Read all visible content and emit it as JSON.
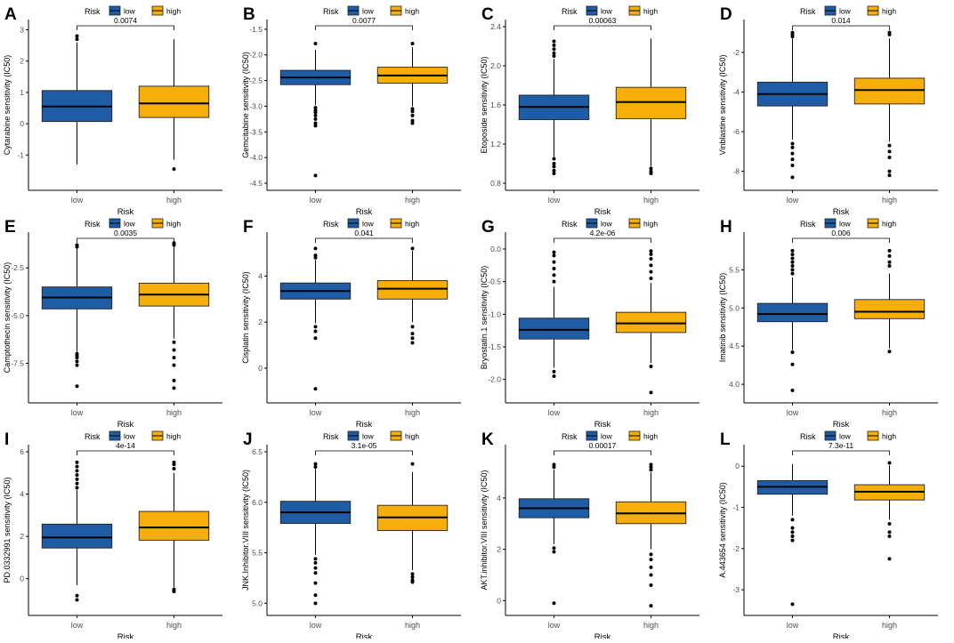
{
  "colors": {
    "low": "#1f5ca6",
    "high": "#f6ae0b",
    "text": "#000000",
    "axis": "#000000",
    "tick_text": "#4d4d4d"
  },
  "legend": {
    "title": "Risk",
    "items": [
      {
        "label": "low",
        "group": "low"
      },
      {
        "label": "high",
        "group": "high"
      }
    ]
  },
  "chart_data": [
    {
      "panel": "A",
      "type": "box",
      "title": "",
      "xlabel": "Risk",
      "ylabel": "Cytarabine sensitivity (IC50)",
      "categories": [
        "low",
        "high"
      ],
      "ylim": [
        -1.9,
        3.1
      ],
      "yticks": [
        -1,
        0,
        1,
        2,
        3
      ],
      "ytick_labels": [
        "-1",
        "0",
        "1",
        "2",
        "3"
      ],
      "pvalue": "0.0074",
      "boxes": [
        {
          "group": "low",
          "q1": 0.07,
          "median": 0.55,
          "q3": 1.06,
          "whisker_low": -1.3,
          "whisker_high": 2.6,
          "outliers": [
            2.7,
            2.8
          ]
        },
        {
          "group": "high",
          "q1": 0.2,
          "median": 0.65,
          "q3": 1.2,
          "whisker_low": -1.15,
          "whisker_high": 2.7,
          "outliers": [
            -1.45
          ]
        }
      ]
    },
    {
      "panel": "B",
      "type": "box",
      "title": "",
      "xlabel": "Risk",
      "ylabel": "Gemcitabine sensitivity (IC50)",
      "categories": [
        "low",
        "high"
      ],
      "ylim": [
        -4.5,
        -1.45
      ],
      "yticks": [
        -4.5,
        -4.0,
        -3.5,
        -3.0,
        -2.5,
        -2.0,
        -1.5
      ],
      "ytick_labels": [
        "-4.5",
        "-4.0",
        "-3.5",
        "-3.0",
        "-2.5",
        "-2.0",
        "-1.5"
      ],
      "pvalue": "0.0077",
      "boxes": [
        {
          "group": "low",
          "q1": -2.58,
          "median": -2.44,
          "q3": -2.3,
          "whisker_low": -2.98,
          "whisker_high": -1.9,
          "outliers": [
            -3.03,
            -3.08,
            -3.12,
            -3.18,
            -3.25,
            -3.33,
            -3.38,
            -1.78,
            -4.35
          ]
        },
        {
          "group": "high",
          "q1": -2.55,
          "median": -2.4,
          "q3": -2.24,
          "whisker_low": -3.0,
          "whisker_high": -1.85,
          "outliers": [
            -3.05,
            -3.1,
            -3.18,
            -3.28,
            -3.33,
            -1.78
          ]
        }
      ]
    },
    {
      "panel": "C",
      "type": "box",
      "title": "",
      "xlabel": "Risk",
      "ylabel": "Etoposide sensitivity (IC50)",
      "categories": [
        "low",
        "high"
      ],
      "ylim": [
        0.8,
        2.4
      ],
      "yticks": [
        0.8,
        1.2,
        1.6,
        2.0,
        2.4
      ],
      "ytick_labels": [
        "0.8",
        "1.2",
        "1.6",
        "2.0",
        "2.4"
      ],
      "pvalue": "0.00063",
      "boxes": [
        {
          "group": "low",
          "q1": 1.45,
          "median": 1.58,
          "q3": 1.7,
          "whisker_low": 1.07,
          "whisker_high": 2.07,
          "outliers": [
            1.05,
            1.0,
            0.97,
            0.93,
            0.9,
            2.1,
            2.13,
            2.17,
            2.21,
            2.25
          ]
        },
        {
          "group": "high",
          "q1": 1.46,
          "median": 1.63,
          "q3": 1.78,
          "whisker_low": 0.97,
          "whisker_high": 2.28,
          "outliers": [
            0.95,
            0.92,
            0.9
          ]
        }
      ]
    },
    {
      "panel": "D",
      "type": "box",
      "title": "",
      "xlabel": "Risk",
      "ylabel": "Vinblastine sensitivity (IC50)",
      "categories": [
        "low",
        "high"
      ],
      "ylim": [
        -8.6,
        -0.7
      ],
      "yticks": [
        -8,
        -6,
        -4,
        -2
      ],
      "ytick_labels": [
        "-8",
        "-6",
        "-4",
        "-2"
      ],
      "pvalue": "0.014",
      "boxes": [
        {
          "group": "low",
          "q1": -4.7,
          "median": -4.1,
          "q3": -3.5,
          "whisker_low": -6.4,
          "whisker_high": -1.3,
          "outliers": [
            -6.6,
            -6.8,
            -7.1,
            -7.4,
            -7.7,
            -8.3,
            -1.2,
            -1.1,
            -1.0
          ]
        },
        {
          "group": "high",
          "q1": -4.6,
          "median": -3.9,
          "q3": -3.3,
          "whisker_low": -6.5,
          "whisker_high": -1.3,
          "outliers": [
            -6.7,
            -7.0,
            -7.3,
            -8.0,
            -8.2,
            -1.1,
            -1.0
          ]
        }
      ]
    },
    {
      "panel": "E",
      "type": "box",
      "title": "",
      "xlabel": "Risk",
      "ylabel": "Camptothecin sensitivity (IC50)",
      "categories": [
        "low",
        "high"
      ],
      "ylim": [
        -9.2,
        -1.0
      ],
      "yticks": [
        -7.5,
        -5.0,
        -2.5
      ],
      "ytick_labels": [
        "-7.5",
        "-5.0",
        "-2.5"
      ],
      "pvalue": "0.0035",
      "boxes": [
        {
          "group": "low",
          "q1": -4.65,
          "median": -4.05,
          "q3": -3.5,
          "whisker_low": -6.9,
          "whisker_high": -1.5,
          "outliers": [
            -7.0,
            -7.1,
            -7.2,
            -7.4,
            -7.6,
            -8.7,
            -1.4,
            -1.3
          ]
        },
        {
          "group": "high",
          "q1": -4.5,
          "median": -3.9,
          "q3": -3.3,
          "whisker_low": -6.2,
          "whisker_high": -1.4,
          "outliers": [
            -6.4,
            -6.8,
            -7.2,
            -7.6,
            -8.4,
            -8.8,
            -1.3,
            -1.2
          ]
        }
      ]
    },
    {
      "panel": "F",
      "type": "box",
      "title": "",
      "xlabel": "Risk",
      "ylabel": "Cisplatin sensitivity (IC50)",
      "categories": [
        "low",
        "high"
      ],
      "ylim": [
        -1.2,
        5.6
      ],
      "yticks": [
        0,
        2,
        4
      ],
      "ytick_labels": [
        "0",
        "2",
        "4"
      ],
      "pvalue": "0.041",
      "boxes": [
        {
          "group": "low",
          "q1": 3.0,
          "median": 3.35,
          "q3": 3.7,
          "whisker_low": 1.95,
          "whisker_high": 4.7,
          "outliers": [
            1.8,
            1.6,
            1.3,
            -0.9,
            4.8,
            4.9,
            5.2
          ]
        },
        {
          "group": "high",
          "q1": 3.0,
          "median": 3.45,
          "q3": 3.8,
          "whisker_low": 2.0,
          "whisker_high": 5.1,
          "outliers": [
            1.8,
            1.5,
            1.3,
            1.1,
            5.2
          ]
        }
      ]
    },
    {
      "panel": "G",
      "type": "box",
      "title": "",
      "xlabel": "Risk",
      "ylabel": "Bryostatin.1 sensitivity (IC50)",
      "categories": [
        "low",
        "high"
      ],
      "ylim": [
        -2.25,
        0.15
      ],
      "yticks": [
        -2.0,
        -1.5,
        -1.0,
        -0.5,
        0.0
      ],
      "ytick_labels": [
        "-2.0",
        "-1.5",
        "-1.0",
        "-0.5",
        "0.0"
      ],
      "pvalue": "4.2e-06",
      "boxes": [
        {
          "group": "low",
          "q1": -1.38,
          "median": -1.24,
          "q3": -1.06,
          "whisker_low": -1.82,
          "whisker_high": -0.58,
          "outliers": [
            -1.88,
            -1.95,
            -0.5,
            -0.4,
            -0.3,
            -0.2,
            -0.1,
            -0.05
          ]
        },
        {
          "group": "high",
          "q1": -1.28,
          "median": -1.14,
          "q3": -0.97,
          "whisker_low": -1.75,
          "whisker_high": -0.52,
          "outliers": [
            -1.8,
            -2.2,
            -0.45,
            -0.35,
            -0.25,
            -0.15,
            -0.08,
            -0.03
          ]
        }
      ]
    },
    {
      "panel": "H",
      "type": "box",
      "title": "",
      "xlabel": "Risk",
      "ylabel": "Imatinib sensitivity (IC50)",
      "categories": [
        "low",
        "high"
      ],
      "ylim": [
        3.85,
        5.9
      ],
      "yticks": [
        4.0,
        4.5,
        5.0,
        5.5
      ],
      "ytick_labels": [
        "4.0",
        "4.5",
        "5.0",
        "5.5"
      ],
      "pvalue": "0.006",
      "boxes": [
        {
          "group": "low",
          "q1": 4.82,
          "median": 4.92,
          "q3": 5.06,
          "whisker_low": 4.45,
          "whisker_high": 5.4,
          "outliers": [
            4.42,
            4.26,
            3.92,
            5.45,
            5.5,
            5.55,
            5.6,
            5.65,
            5.7,
            5.75
          ]
        },
        {
          "group": "high",
          "q1": 4.86,
          "median": 4.95,
          "q3": 5.11,
          "whisker_low": 4.47,
          "whisker_high": 5.45,
          "outliers": [
            4.43,
            5.55,
            5.6,
            5.68,
            5.75
          ]
        }
      ]
    },
    {
      "panel": "I",
      "type": "box",
      "title": "",
      "xlabel": "Risk",
      "ylabel": "PD.0332991 sensitivity (IC50)",
      "categories": [
        "low",
        "high"
      ],
      "ylim": [
        -1.4,
        6.0
      ],
      "yticks": [
        0,
        2,
        4,
        6
      ],
      "ytick_labels": [
        "0",
        "2",
        "4",
        "6"
      ],
      "pvalue": "4e-14",
      "boxes": [
        {
          "group": "low",
          "q1": 1.45,
          "median": 1.95,
          "q3": 2.58,
          "whisker_low": -0.3,
          "whisker_high": 4.2,
          "outliers": [
            -0.8,
            -1.0,
            4.3,
            4.5,
            4.7,
            4.9,
            5.1,
            5.3,
            5.5
          ]
        },
        {
          "group": "high",
          "q1": 1.82,
          "median": 2.42,
          "q3": 3.18,
          "whisker_low": -0.4,
          "whisker_high": 5.0,
          "outliers": [
            -0.5,
            -0.6,
            5.2,
            5.4,
            5.5
          ]
        }
      ]
    },
    {
      "panel": "J",
      "type": "box",
      "title": "",
      "xlabel": "Risk",
      "ylabel": "JNK.Inhibitor.VIII sensitivity (IC50)",
      "categories": [
        "low",
        "high"
      ],
      "ylim": [
        4.95,
        6.5
      ],
      "yticks": [
        5.0,
        5.5,
        6.0,
        6.5
      ],
      "ytick_labels": [
        "5.0",
        "5.5",
        "6.0",
        "6.5"
      ],
      "pvalue": "3.1e-05",
      "boxes": [
        {
          "group": "low",
          "q1": 5.79,
          "median": 5.9,
          "q3": 6.01,
          "whisker_low": 5.48,
          "whisker_high": 6.33,
          "outliers": [
            5.44,
            5.4,
            5.35,
            5.3,
            5.2,
            5.08,
            5.0,
            6.35,
            6.38
          ]
        },
        {
          "group": "high",
          "q1": 5.72,
          "median": 5.85,
          "q3": 5.97,
          "whisker_low": 5.33,
          "whisker_high": 6.3,
          "outliers": [
            5.29,
            5.26,
            5.23,
            5.21,
            6.38
          ]
        }
      ]
    },
    {
      "panel": "K",
      "type": "box",
      "title": "",
      "xlabel": "Risk",
      "ylabel": "AKT.inhibitor.VIII sensitivity (IC50)",
      "categories": [
        "low",
        "high"
      ],
      "ylim": [
        -0.3,
        5.8
      ],
      "yticks": [
        0,
        2,
        4
      ],
      "ytick_labels": [
        "0",
        "2",
        "4"
      ],
      "pvalue": "0.00017",
      "boxes": [
        {
          "group": "low",
          "q1": 3.23,
          "median": 3.6,
          "q3": 3.97,
          "whisker_low": 2.2,
          "whisker_high": 5.1,
          "outliers": [
            2.05,
            1.9,
            -0.1,
            5.2,
            5.3
          ]
        },
        {
          "group": "high",
          "q1": 3.0,
          "median": 3.4,
          "q3": 3.85,
          "whisker_low": 2.0,
          "whisker_high": 5.0,
          "outliers": [
            1.8,
            1.6,
            1.3,
            1.0,
            0.6,
            -0.2,
            5.1,
            5.2,
            5.3
          ]
        }
      ]
    },
    {
      "panel": "L",
      "type": "box",
      "title": "",
      "xlabel": "Risk",
      "ylabel": "A.443654 sensitivity (IC50)",
      "categories": [
        "low",
        "high"
      ],
      "ylim": [
        -3.45,
        0.35
      ],
      "yticks": [
        -3,
        -2,
        -1,
        0
      ],
      "ytick_labels": [
        "-3",
        "-2",
        "-1",
        "0"
      ],
      "pvalue": "7.3e-11",
      "boxes": [
        {
          "group": "low",
          "q1": -0.68,
          "median": -0.5,
          "q3": -0.35,
          "whisker_low": -1.2,
          "whisker_high": 0.05,
          "outliers": [
            -1.3,
            -1.5,
            -1.6,
            -1.7,
            -1.8,
            -3.35
          ]
        },
        {
          "group": "high",
          "q1": -0.82,
          "median": -0.62,
          "q3": -0.45,
          "whisker_low": -1.3,
          "whisker_high": 0.02,
          "outliers": [
            -1.4,
            -1.6,
            -1.7,
            -2.25,
            0.08
          ]
        }
      ]
    }
  ]
}
